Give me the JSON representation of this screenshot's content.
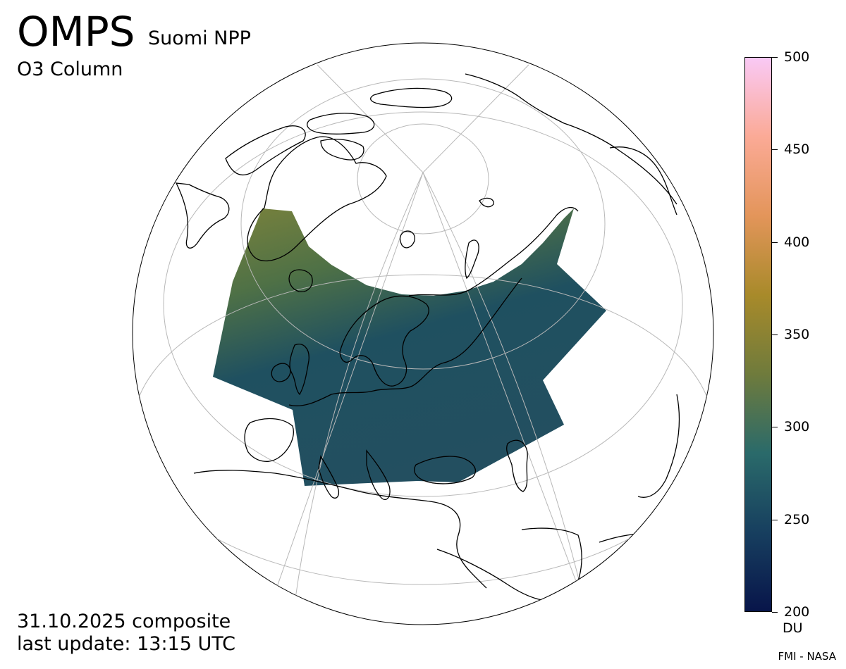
{
  "header": {
    "title": "OMPS",
    "subtitle": "Suomi NPP",
    "product": "O3 Column"
  },
  "footer": {
    "date_line": "31.10.2025 composite",
    "update_line": "last update: 13:15 UTC",
    "credit": "FMI - NASA"
  },
  "colorbar": {
    "unit": "DU",
    "min": 200,
    "max": 500,
    "ticks": [
      "200",
      "250",
      "300",
      "350",
      "400",
      "450",
      "500"
    ],
    "stops": [
      "#08154a",
      "#173f5f",
      "#2a6a6a",
      "#6f7b3c",
      "#a88a2a",
      "#e3955a",
      "#fbaa96",
      "#f9c9f5"
    ]
  },
  "map": {
    "projection": "orthographic (north-polar view)",
    "data_color_main": "#1f4f63",
    "data_color_north": "#5f7a3f"
  }
}
